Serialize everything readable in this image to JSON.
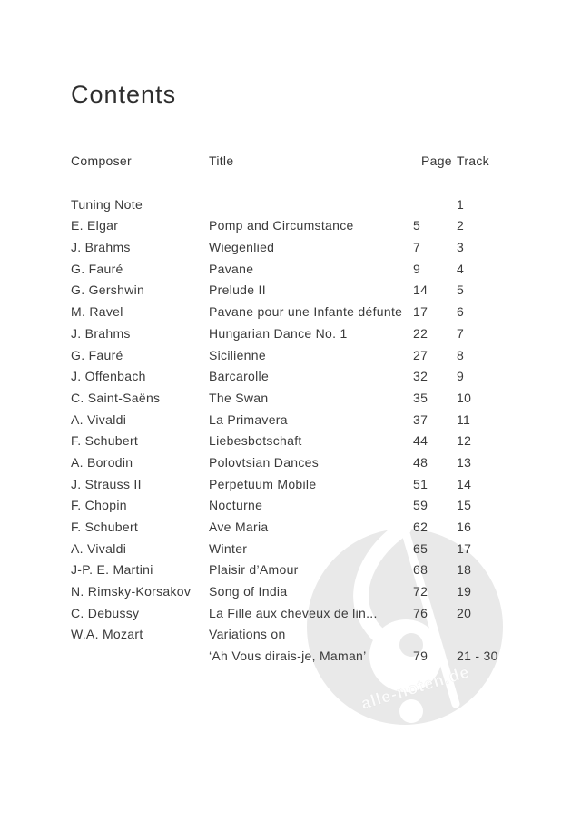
{
  "page": {
    "title": "Contents"
  },
  "table": {
    "headers": {
      "composer": "Composer",
      "title": "Title",
      "page": "Page",
      "track": "Track"
    },
    "rows": [
      {
        "composer": "Tuning Note",
        "title": "",
        "page": "",
        "track": "1"
      },
      {
        "composer": "E. Elgar",
        "title": "Pomp and Circumstance",
        "page": "5",
        "track": "2"
      },
      {
        "composer": "J. Brahms",
        "title": "Wiegenlied",
        "page": "7",
        "track": "3"
      },
      {
        "composer": "G. Fauré",
        "title": "Pavane",
        "page": "9",
        "track": "4"
      },
      {
        "composer": "G. Gershwin",
        "title": "Prelude II",
        "page": "14",
        "track": "5"
      },
      {
        "composer": "M. Ravel",
        "title": "Pavane pour une Infante défunte",
        "page": "17",
        "track": "6"
      },
      {
        "composer": "J. Brahms",
        "title": "Hungarian Dance No. 1",
        "page": "22",
        "track": "7"
      },
      {
        "composer": "G. Fauré",
        "title": "Sicilienne",
        "page": "27",
        "track": "8"
      },
      {
        "composer": "J. Offenbach",
        "title": "Barcarolle",
        "page": "32",
        "track": "9"
      },
      {
        "composer": "C. Saint-Saëns",
        "title": "The Swan",
        "page": "35",
        "track": "10"
      },
      {
        "composer": "A. Vivaldi",
        "title": "La Primavera",
        "page": "37",
        "track": "11"
      },
      {
        "composer": "F. Schubert",
        "title": "Liebesbotschaft",
        "page": "44",
        "track": "12"
      },
      {
        "composer": "A. Borodin",
        "title": "Polovtsian Dances",
        "page": "48",
        "track": "13"
      },
      {
        "composer": "J. Strauss II",
        "title": "Perpetuum Mobile",
        "page": "51",
        "track": "14"
      },
      {
        "composer": "F. Chopin",
        "title": "Nocturne",
        "page": "59",
        "track": "15"
      },
      {
        "composer": "F. Schubert",
        "title": "Ave Maria",
        "page": "62",
        "track": "16"
      },
      {
        "composer": "A. Vivaldi",
        "title": "Winter",
        "page": "65",
        "track": "17"
      },
      {
        "composer": "J-P. E. Martini",
        "title": "Plaisir d’Amour",
        "page": "68",
        "track": "18"
      },
      {
        "composer": "N. Rimsky-Korsakov",
        "title": "Song of India",
        "page": "72",
        "track": "19"
      },
      {
        "composer": "C. Debussy",
        "title": "La Fille aux cheveux de lin...",
        "page": "76",
        "track": "20"
      },
      {
        "composer": "W.A. Mozart",
        "title": "Variations on",
        "page": "",
        "track": ""
      },
      {
        "composer": "",
        "title": "‘Ah Vous dirais-je, Maman’",
        "page": "79",
        "track": "21 - 30"
      }
    ]
  },
  "watermark": {
    "text": "alle-noten.de",
    "icon": "treble-clef-icon",
    "circle_color": "#e9e9e9"
  }
}
